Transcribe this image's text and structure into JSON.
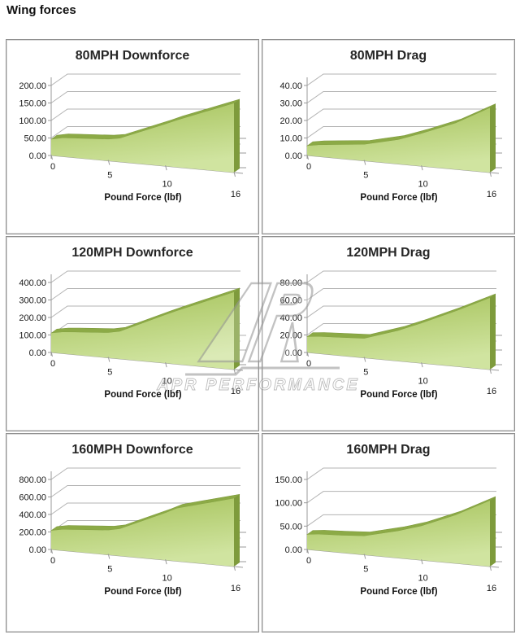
{
  "page": {
    "title": "Wing forces"
  },
  "watermark": {
    "text": "APR PERFORMANCE",
    "logo": "apr-monogram",
    "color": "#9a9a9a"
  },
  "colors": {
    "area_fill_top": "#a4c158",
    "area_fill_bottom": "#d0e4a0",
    "area_ridge": "#8caa46",
    "area_side": "#7e9b3c",
    "gridline": "#b3b3b3",
    "axis": "#9a9a9a",
    "panel_border": "#8f8f8f",
    "text": "#262626"
  },
  "axis": {
    "x_tick_labels": [
      "0",
      "5",
      "10",
      "16"
    ],
    "x_tick_values": [
      0,
      5,
      10,
      16
    ],
    "x_max": 16
  },
  "chart_data": [
    {
      "type": "area",
      "title": "80MPH Downforce",
      "xlabel": "Pound Force (lbf)",
      "y_tick_labels": [
        "200.00",
        "150.00",
        "100.00",
        "50.00",
        "0.00"
      ],
      "ylim": [
        0,
        200
      ],
      "x": [
        0,
        1,
        2,
        5,
        6,
        10,
        11,
        16
      ],
      "values": [
        46,
        52,
        53,
        56,
        60,
        100,
        110,
        150
      ]
    },
    {
      "type": "area",
      "title": "80MPH Drag",
      "xlabel": "Pound Force (lbf)",
      "y_tick_labels": [
        "40.00",
        "30.00",
        "20.00",
        "10.00",
        "0.00"
      ],
      "ylim": [
        0,
        40
      ],
      "x": [
        0,
        1,
        3,
        5,
        8,
        10,
        13,
        16
      ],
      "values": [
        5.5,
        6.5,
        7.5,
        8.5,
        12,
        15.5,
        21,
        28
      ]
    },
    {
      "type": "area",
      "title": "120MPH Downforce",
      "xlabel": "Pound Force (lbf)",
      "y_tick_labels": [
        "400.00",
        "300.00",
        "200.00",
        "100.00",
        "0.00"
      ],
      "ylim": [
        0,
        400
      ],
      "x": [
        0,
        1,
        2,
        5,
        6,
        10,
        11,
        16
      ],
      "values": [
        110,
        120,
        123,
        130,
        140,
        230,
        250,
        335
      ]
    },
    {
      "type": "area",
      "title": "120MPH Drag",
      "xlabel": "Pound Force (lbf)",
      "y_tick_labels": [
        "80.00",
        "60.00",
        "40.00",
        "20.00",
        "0.00"
      ],
      "ylim": [
        0,
        80
      ],
      "x": [
        0,
        1,
        3,
        5,
        8,
        10,
        13,
        16
      ],
      "values": [
        18,
        19,
        19.5,
        20,
        30,
        38,
        50,
        62
      ]
    },
    {
      "type": "area",
      "title": "160MPH Downforce",
      "xlabel": "Pound Force (lbf)",
      "y_tick_labels": [
        "800.00",
        "600.00",
        "400.00",
        "200.00",
        "0.00"
      ],
      "ylim": [
        0,
        800
      ],
      "x": [
        0,
        1,
        2,
        5,
        6,
        10,
        11,
        16
      ],
      "values": [
        215,
        235,
        240,
        255,
        275,
        450,
        495,
        590
      ]
    },
    {
      "type": "area",
      "title": "160MPH Drag",
      "xlabel": "Pound Force (lbf)",
      "y_tick_labels": [
        "150.00",
        "100.00",
        "50.00",
        "0.00"
      ],
      "ylim": [
        0,
        150
      ],
      "x": [
        0,
        1,
        3,
        5,
        8,
        10,
        13,
        16
      ],
      "values": [
        32,
        34,
        35,
        36.5,
        50,
        61,
        82,
        107
      ]
    }
  ]
}
